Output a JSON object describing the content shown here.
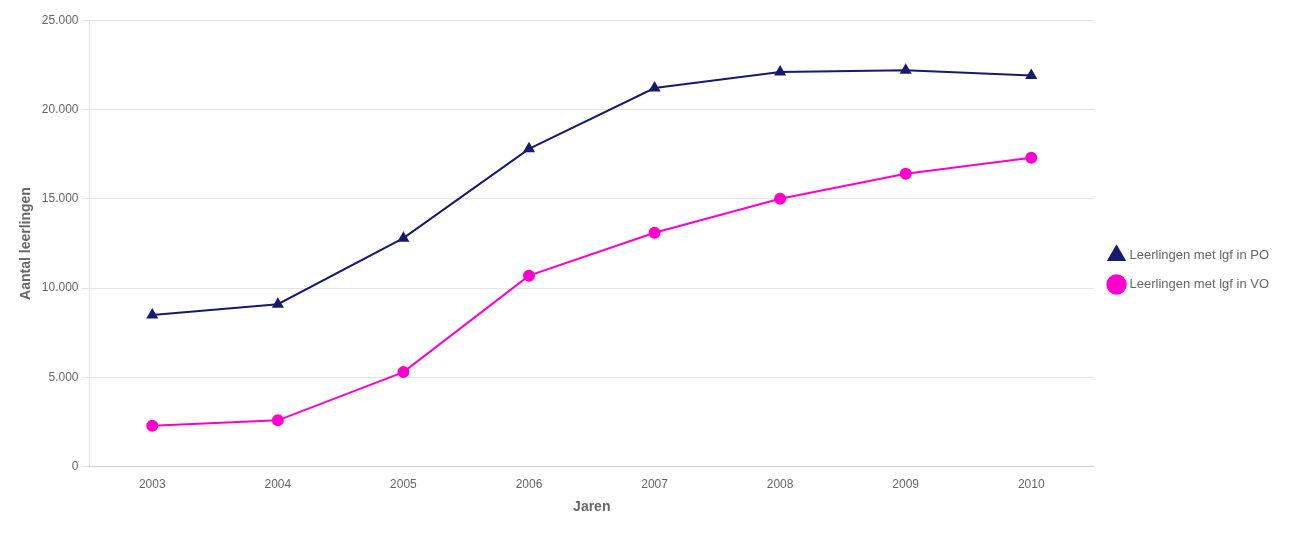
{
  "chart_data": {
    "type": "line",
    "x": [
      2003,
      2004,
      2005,
      2006,
      2007,
      2008,
      2009,
      2010
    ],
    "series": [
      {
        "name": "Leerlingen met lgf in PO",
        "color": "#191970",
        "marker": "triangle",
        "values": [
          8500,
          9100,
          12800,
          17800,
          21200,
          22100,
          22200,
          21900
        ]
      },
      {
        "name": "Leerlingen met lgf in VO",
        "color": "#FF00CC",
        "marker": "circle",
        "values": [
          2300,
          2600,
          5300,
          10700,
          13100,
          15000,
          16400,
          17300
        ]
      }
    ],
    "x_label": "Jaren",
    "y_label": "Aantal leerlingen",
    "xlim": [
      2002.5,
      2010.5
    ],
    "xticks": [
      2003,
      2004,
      2005,
      2006,
      2007,
      2008,
      2009,
      2010
    ],
    "ylim": [
      0,
      25000
    ],
    "yticks": [
      0,
      {
        "value": 5000,
        "label": "5.000"
      },
      {
        "value": 10000,
        "label": "10.000"
      },
      {
        "value": 15000,
        "label": "15.000"
      },
      {
        "value": 20000,
        "label": "20.000"
      },
      {
        "value": 25000,
        "label": "25.000"
      }
    ],
    "grid": "y",
    "legend": "right"
  }
}
